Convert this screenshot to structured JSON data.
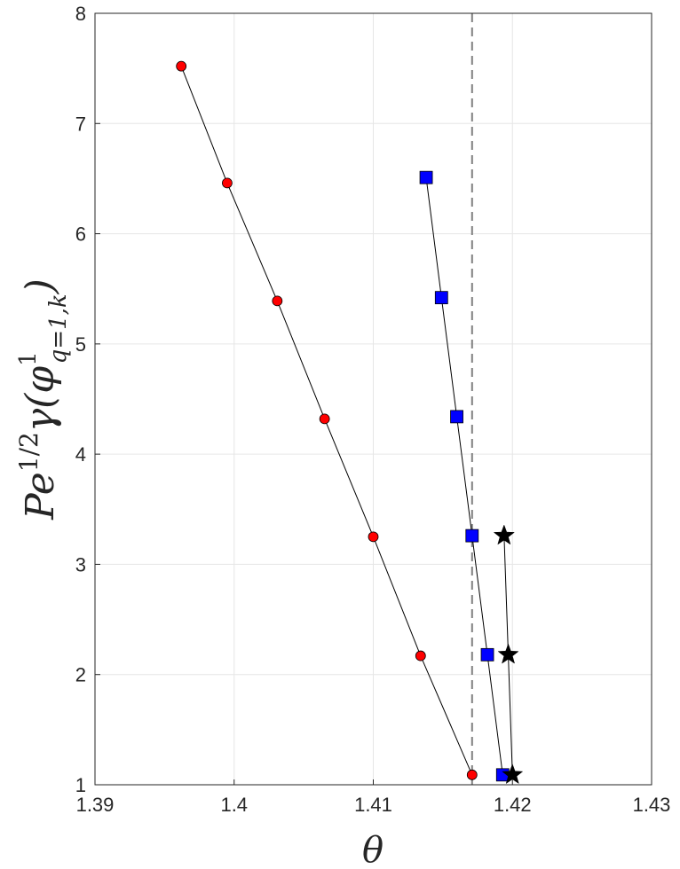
{
  "chart_data": {
    "type": "scatter",
    "xlabel": "θ",
    "ylabel_parts": {
      "base": "Pe",
      "exp": "1/2",
      "func": "γ(φ",
      "phi_sup": "1",
      "phi_sub": "q=1,k",
      "close": ")"
    },
    "xlim": [
      1.39,
      1.43
    ],
    "ylim": [
      1,
      8
    ],
    "x_ticks": [
      1.39,
      1.4,
      1.41,
      1.42,
      1.43
    ],
    "x_tick_labels": [
      "1.39",
      "1.4",
      "1.41",
      "1.42",
      "1.43"
    ],
    "y_ticks": [
      1,
      2,
      3,
      4,
      5,
      6,
      7,
      8
    ],
    "y_tick_labels": [
      "1",
      "2",
      "3",
      "4",
      "5",
      "6",
      "7",
      "8"
    ],
    "grid": true,
    "reference_line": {
      "x": 1.4171,
      "style": "dashed",
      "color": "#808080"
    },
    "series": [
      {
        "marker": "circle",
        "color": "#ff0000",
        "x": [
          1.3962,
          1.3995,
          1.4031,
          1.4065,
          1.41,
          1.4134,
          1.4171
        ],
        "y": [
          7.52,
          6.46,
          5.39,
          4.32,
          3.25,
          2.17,
          1.09
        ]
      },
      {
        "marker": "square",
        "color": "#0000ff",
        "x": [
          1.4138,
          1.4149,
          1.416,
          1.4171,
          1.4182,
          1.4193
        ],
        "y": [
          6.51,
          5.42,
          4.34,
          3.26,
          2.18,
          1.09
        ]
      },
      {
        "marker": "star",
        "color": "#000000",
        "x": [
          1.4194,
          1.4197,
          1.42
        ],
        "y": [
          3.26,
          2.18,
          1.09
        ]
      }
    ]
  }
}
